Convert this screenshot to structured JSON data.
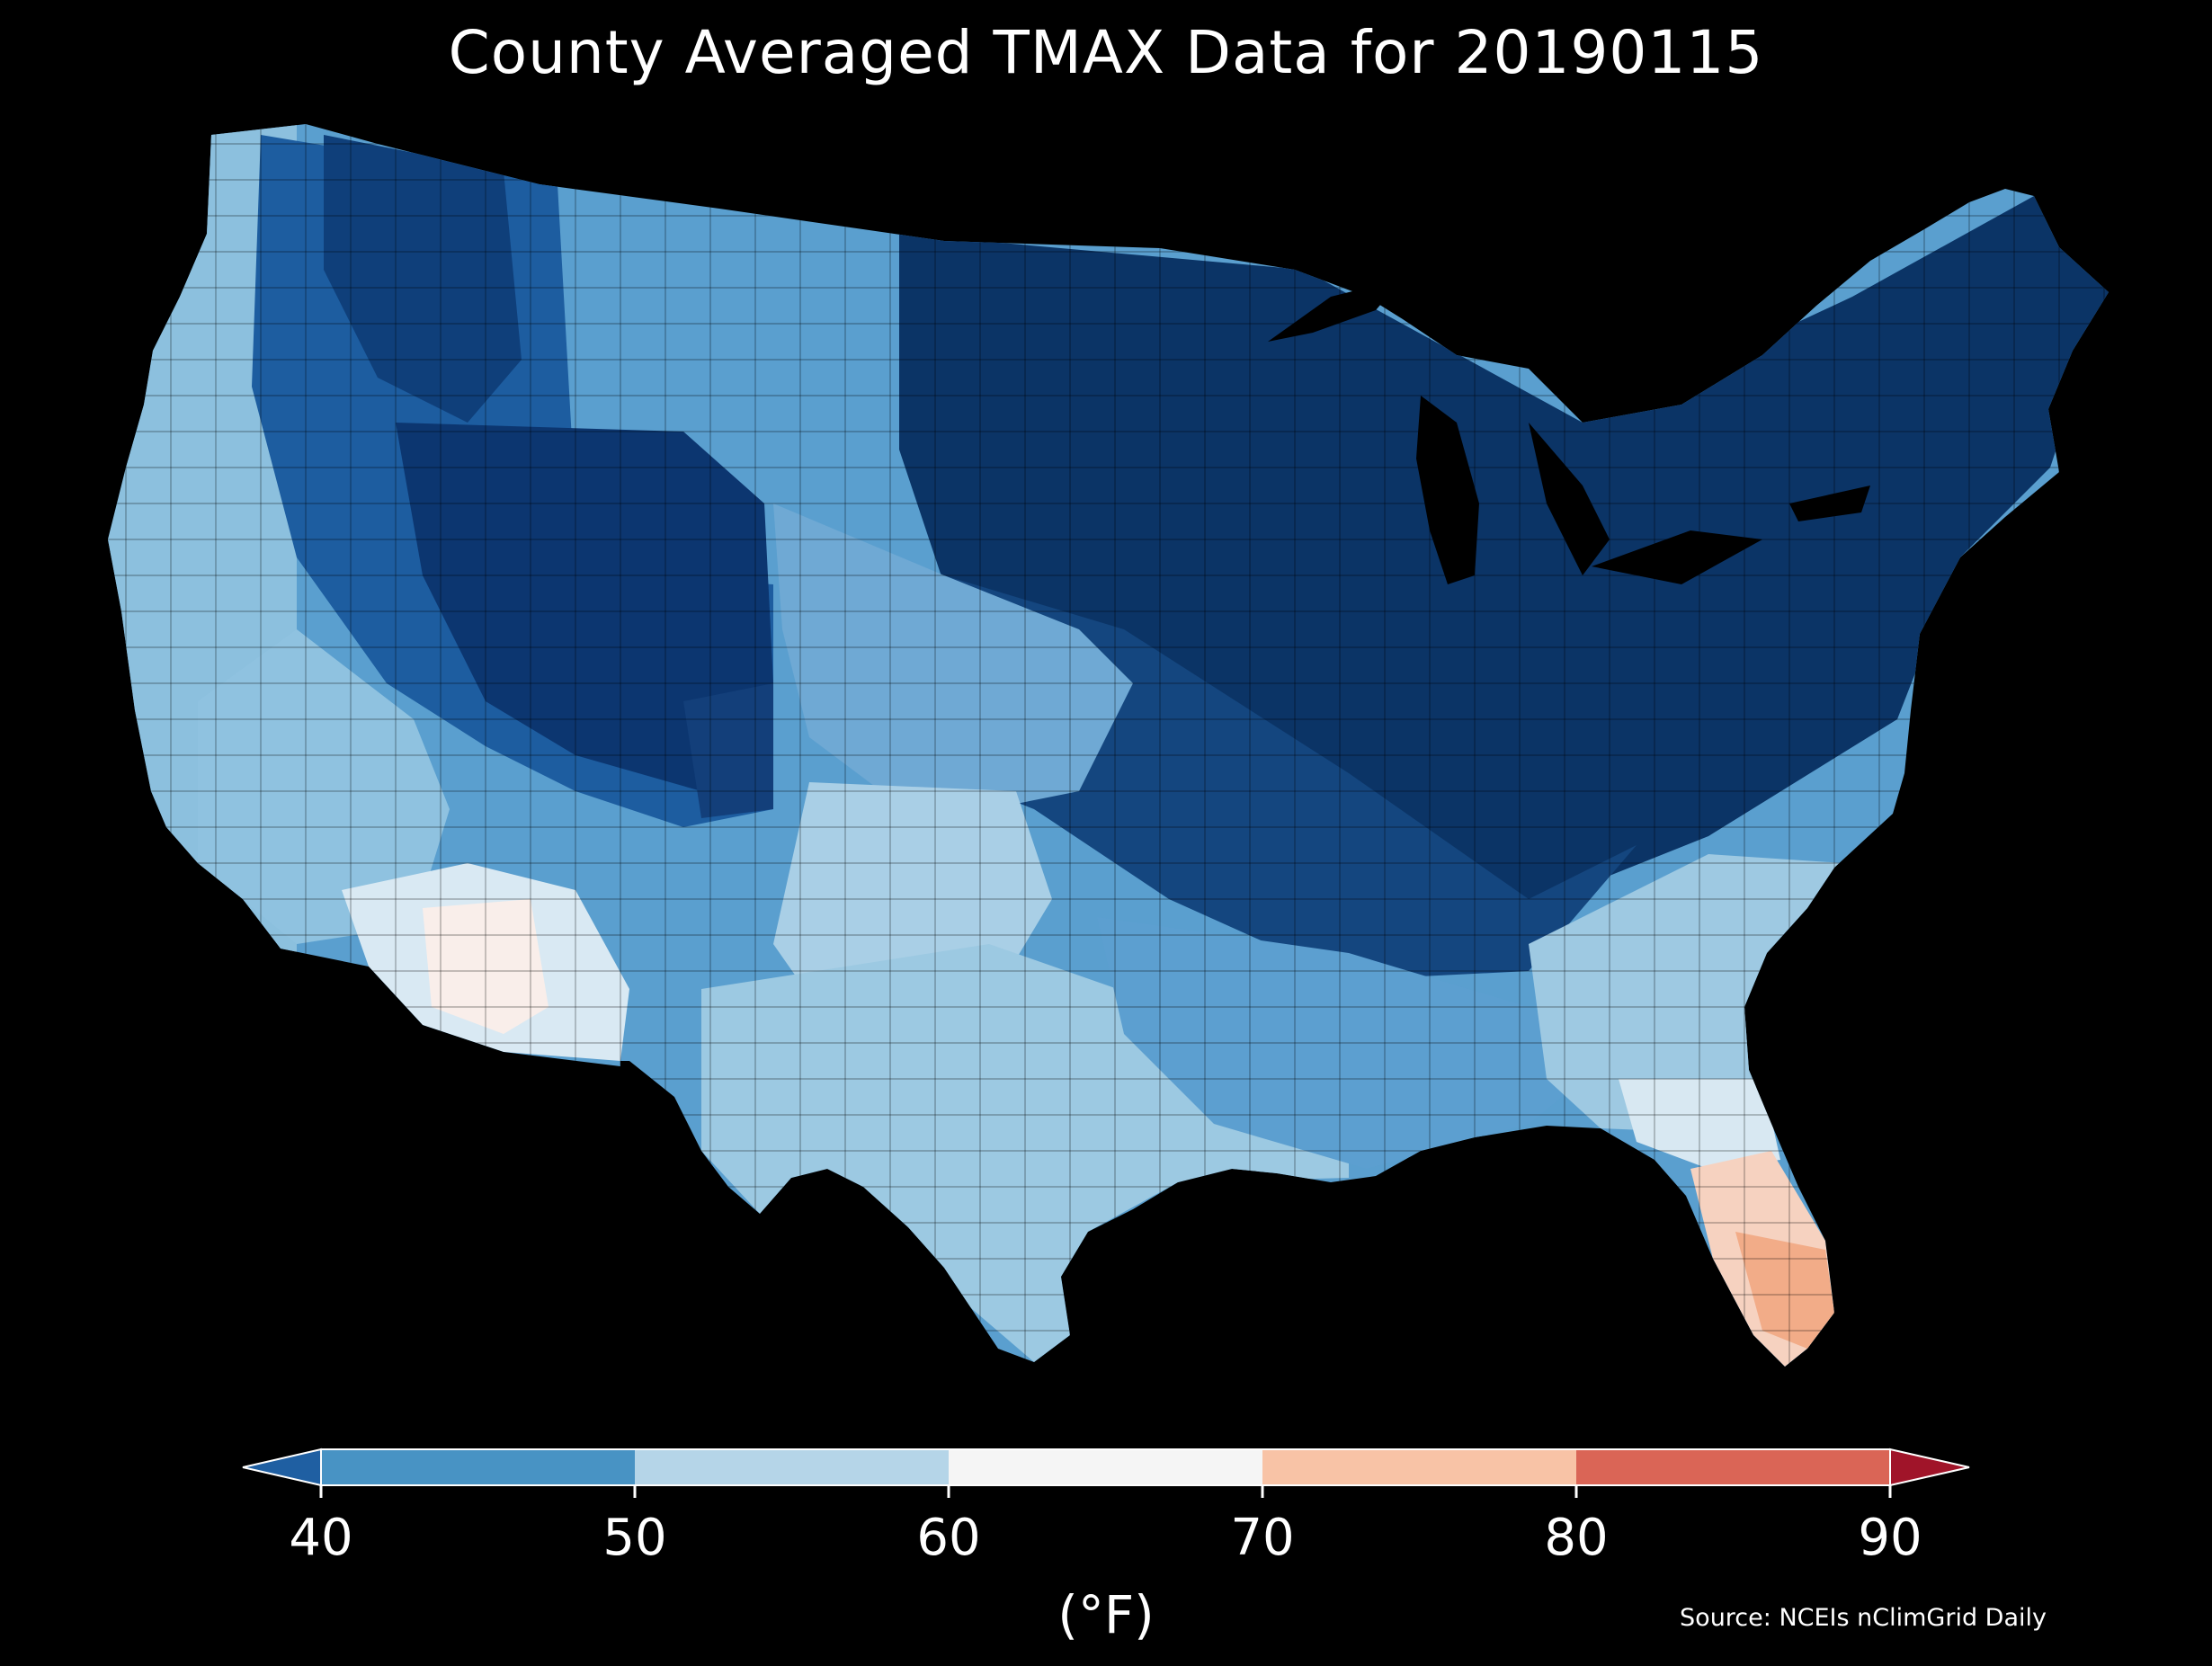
{
  "title": "County Averaged TMAX Data for 20190115",
  "colorbar": {
    "ticks": [
      "40",
      "50",
      "60",
      "70",
      "80",
      "90"
    ],
    "units": "(°F)",
    "bins": [
      {
        "min": 40,
        "max": 50,
        "color": "#4893c4"
      },
      {
        "min": 50,
        "max": 60,
        "color": "#b5d5e8"
      },
      {
        "min": 60,
        "max": 70,
        "color": "#f5f5f5"
      },
      {
        "min": 70,
        "max": 80,
        "color": "#f8c3a6"
      },
      {
        "min": 80,
        "max": 90,
        "color": "#da6556"
      }
    ],
    "under_color": "#1f5fa2",
    "over_color": "#a01429"
  },
  "source": "Source: NCEIs nClimGrid Daily",
  "map": {
    "region": "Contiguous United States",
    "feature": "county-averaged TMAX",
    "palette_dark": "#0b3466",
    "palette_mid": "#2a6fb4",
    "palette_light": "#9fcae1"
  }
}
